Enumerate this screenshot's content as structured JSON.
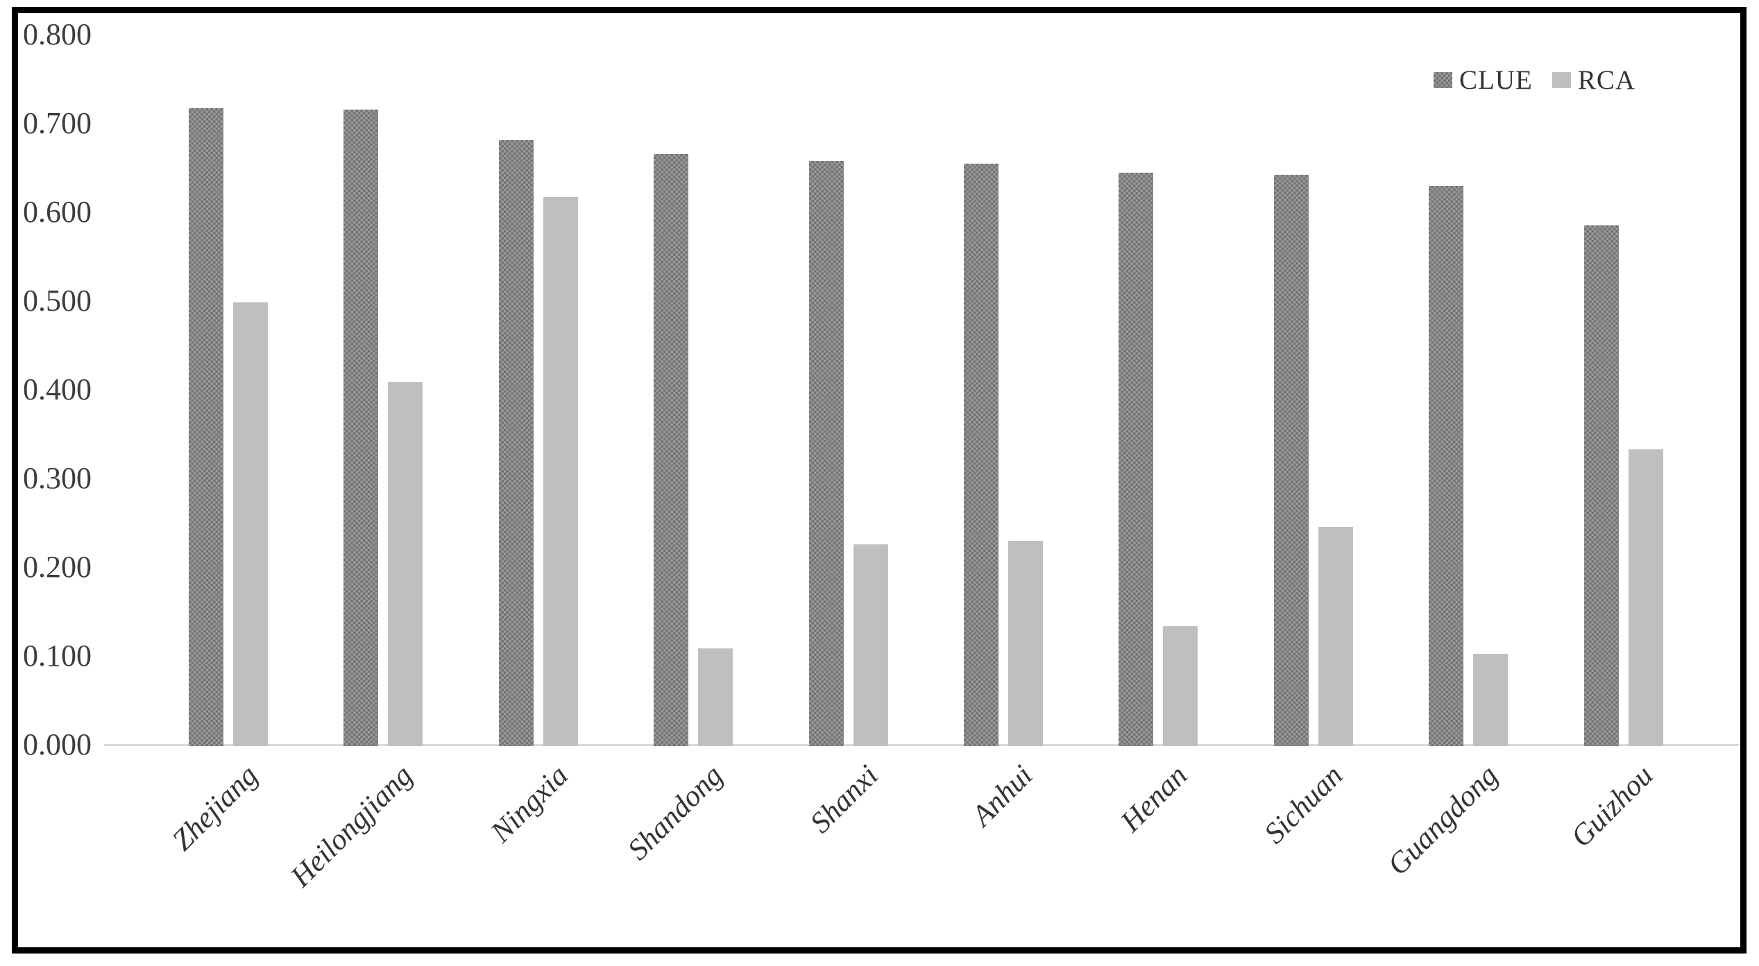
{
  "chart_data": {
    "type": "bar",
    "title": "",
    "xlabel": "",
    "ylabel": "",
    "categories": [
      "Zhejiang",
      "Heilongjiang",
      "Ningxia",
      "Shandong",
      "Shanxi",
      "Anhui",
      "Henan",
      "Sichuan",
      "Guangdong",
      "Guizhou"
    ],
    "series": [
      {
        "name": "CLUE",
        "values": [
          0.719,
          0.717,
          0.683,
          0.667,
          0.659,
          0.656,
          0.646,
          0.644,
          0.631,
          0.587
        ]
      },
      {
        "name": "RCA",
        "values": [
          0.5,
          0.41,
          0.619,
          0.11,
          0.227,
          0.231,
          0.135,
          0.247,
          0.104,
          0.334
        ]
      }
    ],
    "yticks": [
      "0.000",
      "0.100",
      "0.200",
      "0.300",
      "0.400",
      "0.500",
      "0.600",
      "0.700",
      "0.800"
    ],
    "ylim": [
      0.0,
      0.8
    ],
    "grid": "off",
    "legend_position": "top-right",
    "x_label_rotation_deg": 45,
    "colors": {
      "clue_fill": "#8a8a8a",
      "clue_pattern_dot": "#747474",
      "rca_fill": "#bfbfbf",
      "axis_line": "#d9d9d9",
      "text": "#333333",
      "frame_border": "#000000",
      "background": "#ffffff"
    }
  }
}
